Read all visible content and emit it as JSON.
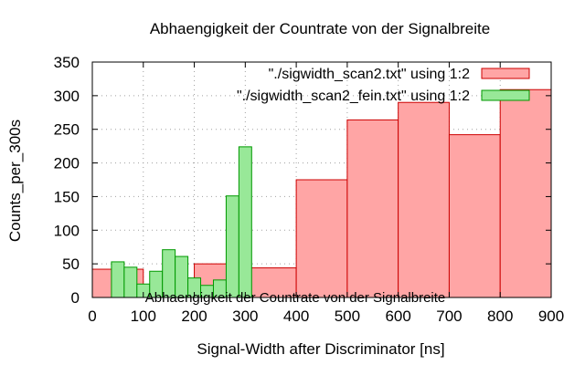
{
  "chart_data": {
    "type": "bar",
    "title": "Abhaengigkeit der Countrate von der Signalbreite",
    "xlabel": "Signal-Width after Discriminator [ns]",
    "ylabel": "Counts_per_300s",
    "xlim": [
      0,
      900
    ],
    "ylim": [
      0,
      350
    ],
    "xticks": [
      0,
      100,
      200,
      300,
      400,
      500,
      600,
      700,
      800,
      900
    ],
    "yticks": [
      0,
      50,
      100,
      150,
      200,
      250,
      300,
      350
    ],
    "grid": true,
    "legend_position": "top-right",
    "overlay_text": "Abhaengigkeit der Countrate von der Signalbreite",
    "series": [
      {
        "name": "\"./sigwidth_scan2.txt\" using 1:2",
        "fill": "#ffa5a5",
        "stroke": "#cc0000",
        "bins": [
          {
            "x0": 0,
            "x1": 100,
            "y": 42
          },
          {
            "x0": 100,
            "x1": 200,
            "y": 0
          },
          {
            "x0": 200,
            "x1": 300,
            "y": 50
          },
          {
            "x0": 300,
            "x1": 400,
            "y": 44
          },
          {
            "x0": 400,
            "x1": 500,
            "y": 175
          },
          {
            "x0": 500,
            "x1": 600,
            "y": 264
          },
          {
            "x0": 600,
            "x1": 700,
            "y": 290
          },
          {
            "x0": 700,
            "x1": 800,
            "y": 242
          },
          {
            "x0": 800,
            "x1": 900,
            "y": 309
          }
        ]
      },
      {
        "name": "\"./sigwidth_scan2_fein.txt\" using 1:2",
        "fill": "#98e898",
        "stroke": "#009900",
        "bins": [
          {
            "x0": 37.5,
            "x1": 62.5,
            "y": 53
          },
          {
            "x0": 62.5,
            "x1": 87.5,
            "y": 45
          },
          {
            "x0": 87.5,
            "x1": 112.5,
            "y": 20
          },
          {
            "x0": 112.5,
            "x1": 137.5,
            "y": 39
          },
          {
            "x0": 137.5,
            "x1": 162.5,
            "y": 71
          },
          {
            "x0": 162.5,
            "x1": 187.5,
            "y": 61
          },
          {
            "x0": 187.5,
            "x1": 212.5,
            "y": 29
          },
          {
            "x0": 212.5,
            "x1": 237.5,
            "y": 18
          },
          {
            "x0": 237.5,
            "x1": 262.5,
            "y": 26
          },
          {
            "x0": 262.5,
            "x1": 287.5,
            "y": 151
          },
          {
            "x0": 287.5,
            "x1": 312.5,
            "y": 224
          }
        ]
      }
    ]
  }
}
